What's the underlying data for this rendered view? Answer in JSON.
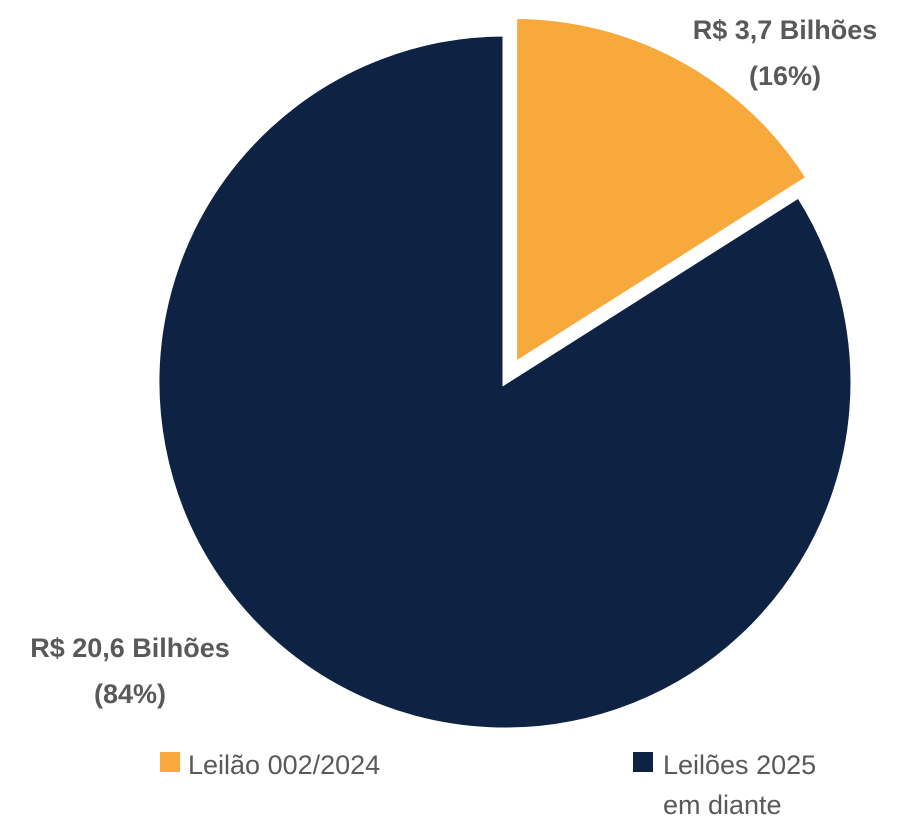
{
  "chart_data": {
    "type": "pie",
    "categories": [
      "Leilão 002/2024",
      "Leilões 2025 em diante"
    ],
    "values": [
      16,
      84
    ],
    "value_labels": [
      "(16%)",
      "(84%)"
    ],
    "amounts": [
      3.7,
      20.6
    ],
    "amount_labels": [
      "R$ 3,7 Bilhões",
      "R$ 20,6 Bilhões"
    ],
    "colors": [
      "#f8a93c",
      "#0e2344"
    ],
    "legend": "bottom"
  }
}
